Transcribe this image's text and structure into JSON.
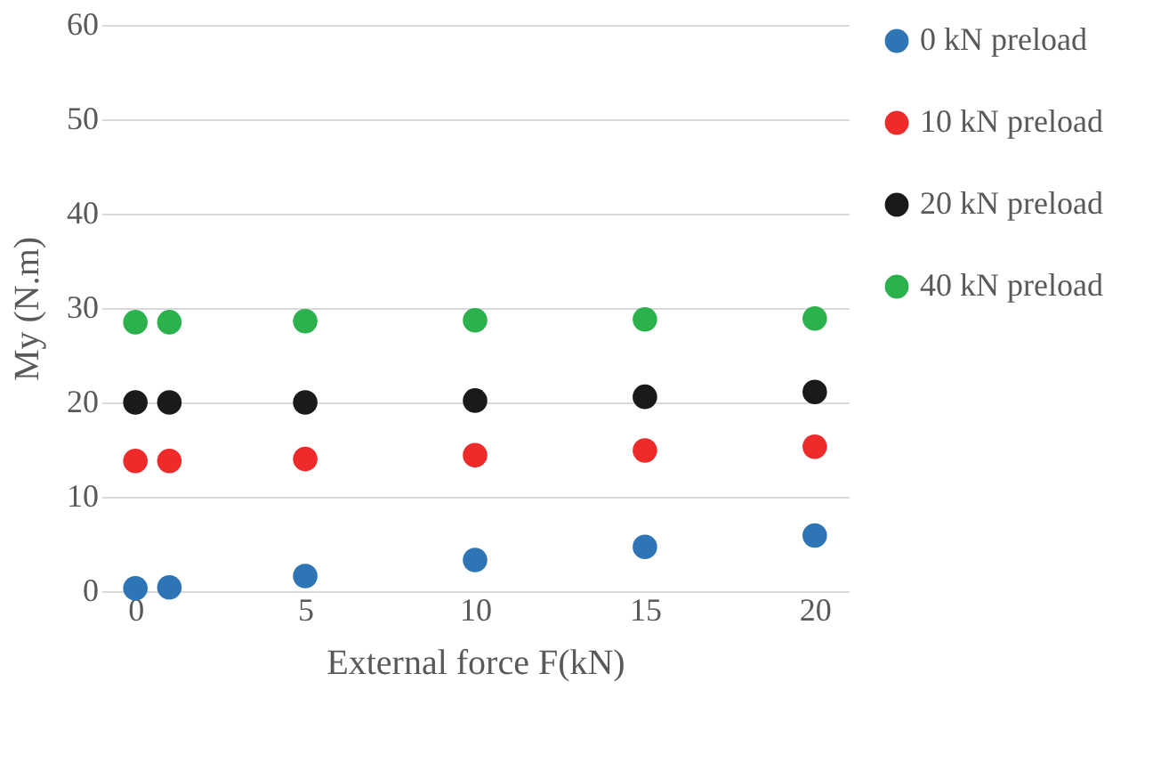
{
  "chart_data": {
    "type": "scatter",
    "xlabel": "External force F(kN)",
    "ylabel": "My (N.m)",
    "x": [
      0,
      1,
      5,
      10,
      15,
      20
    ],
    "series": [
      {
        "name": "0 kN preload",
        "color": "#2e75b6",
        "values": [
          0.3,
          0.4,
          1.6,
          3.3,
          4.7,
          5.9
        ]
      },
      {
        "name": "10 kN preload",
        "color": "#ee2a2a",
        "values": [
          13.8,
          13.8,
          14.0,
          14.4,
          14.9,
          15.3
        ]
      },
      {
        "name": "20 kN preload",
        "color": "#1a1a1a",
        "values": [
          20.0,
          20.0,
          20.0,
          20.2,
          20.6,
          21.1
        ]
      },
      {
        "name": "40 kN preload",
        "color": "#2bb24c",
        "values": [
          28.5,
          28.5,
          28.6,
          28.7,
          28.8,
          28.9
        ]
      }
    ],
    "xlim": [
      -1,
      21
    ],
    "xticks": [
      0,
      5,
      10,
      15,
      20
    ],
    "ylim": [
      0,
      60
    ],
    "yticks": [
      0,
      10,
      20,
      30,
      40,
      50,
      60
    ],
    "grid": "y",
    "legend": "right",
    "marker": "circle"
  }
}
